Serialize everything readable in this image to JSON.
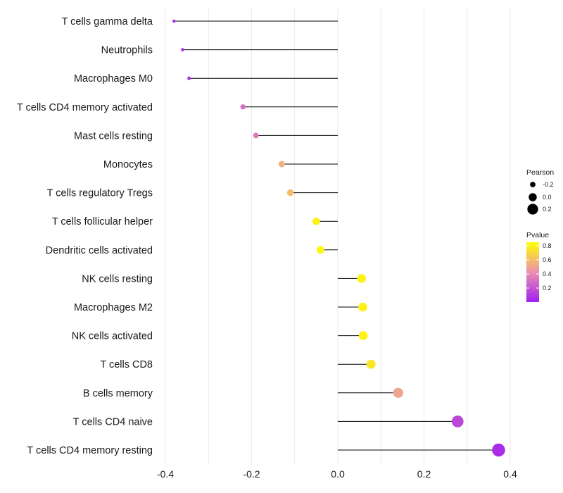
{
  "chart_data": {
    "type": "lollipop",
    "title": "",
    "xlabel": "",
    "ylabel": "",
    "xlim": [
      -0.4,
      0.4
    ],
    "x_ticks": [
      -0.4,
      -0.2,
      0.0,
      0.2,
      0.4
    ],
    "x_tick_labels": [
      "-0.4",
      "-0.2",
      "0.0",
      "0.2",
      "0.4"
    ],
    "grid": true,
    "categories": [
      "T cells gamma delta",
      "Neutrophils",
      "Macrophages M0",
      "T cells CD4 memory activated",
      "Mast cells resting",
      "Monocytes",
      "T cells regulatory  Tregs ",
      "T cells follicular helper",
      "Dendritic cells activated",
      "NK cells resting",
      "Macrophages M2",
      "NK cells activated",
      "T cells CD8",
      "B cells memory",
      "T cells CD4 naive",
      "T cells CD4 memory resting"
    ],
    "pearson": [
      -0.38,
      -0.36,
      -0.345,
      -0.22,
      -0.19,
      -0.13,
      -0.11,
      -0.05,
      -0.04,
      0.055,
      0.058,
      0.059,
      0.077,
      0.14,
      0.278,
      0.373
    ],
    "pvalue": [
      0.03,
      0.05,
      0.06,
      0.3,
      0.35,
      0.55,
      0.6,
      0.8,
      0.82,
      0.8,
      0.8,
      0.8,
      0.75,
      0.5,
      0.15,
      0.05
    ],
    "legend": {
      "size_title": "Pearson",
      "size_values": [
        -0.2,
        0.0,
        0.2
      ],
      "size_labels": [
        "-0.2",
        "0.0",
        "0.2"
      ],
      "color_title": "Pvalue",
      "color_ticks": [
        0.8,
        0.6,
        0.4,
        0.2
      ],
      "color_labels": [
        "0.8",
        "0.6",
        "0.4",
        "0.2"
      ],
      "color_range": [
        0.0,
        0.85
      ],
      "color_low": "#a020f0",
      "color_high": "#ffff00",
      "position": "right"
    },
    "colors": {
      "grid": "#ebebeb",
      "segment": "#000000",
      "text": "#1a1a1a"
    }
  }
}
